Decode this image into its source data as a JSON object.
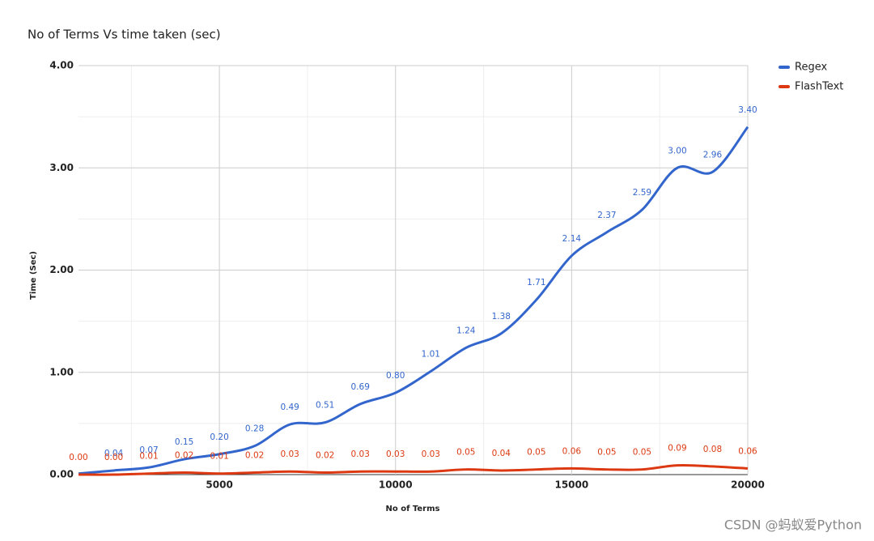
{
  "chart_data": {
    "type": "line",
    "title": "No of Terms Vs time taken (sec)",
    "x_label": "No of Terms",
    "y_label": "Time (Sec)",
    "x": [
      1000,
      2000,
      3000,
      4000,
      5000,
      6000,
      7000,
      8000,
      9000,
      10000,
      11000,
      12000,
      13000,
      14000,
      15000,
      16000,
      17000,
      18000,
      19000,
      20000
    ],
    "series": [
      {
        "name": "Regex",
        "color": "#3366cc",
        "values": [
          0.01,
          0.04,
          0.07,
          0.15,
          0.2,
          0.28,
          0.49,
          0.51,
          0.69,
          0.8,
          1.01,
          1.24,
          1.38,
          1.71,
          2.14,
          2.37,
          2.59,
          3.0,
          2.96,
          3.4
        ],
        "value_labels": [
          null,
          "0.04",
          "0.07",
          "0.15",
          "0.20",
          "0.28",
          "0.49",
          "0.51",
          "0.69",
          "0.80",
          "1.01",
          "1.24",
          "1.38",
          "1.71",
          "2.14",
          "2.37",
          "2.59",
          "3.00",
          "2.96",
          "3.40"
        ]
      },
      {
        "name": "FlashText",
        "color": "#dc3912",
        "values": [
          0.0,
          0.0,
          0.01,
          0.02,
          0.01,
          0.02,
          0.03,
          0.02,
          0.03,
          0.03,
          0.03,
          0.05,
          0.04,
          0.05,
          0.06,
          0.05,
          0.05,
          0.09,
          0.08,
          0.06
        ],
        "value_labels": [
          "0.00",
          "0.00",
          "0.01",
          "0.02",
          "0.01",
          "0.02",
          "0.03",
          "0.02",
          "0.03",
          "0.03",
          "0.03",
          "0.05",
          "0.04",
          "0.05",
          "0.06",
          "0.05",
          "0.05",
          "0.09",
          "0.08",
          "0.06"
        ]
      }
    ],
    "xlim": [
      1000,
      20000
    ],
    "xticks": [
      5000,
      10000,
      15000,
      20000
    ],
    "x_minor_ticks": [
      2500,
      7500,
      12500,
      17500
    ],
    "ylim": [
      0,
      4
    ],
    "yticks": [
      {
        "value": 0,
        "label": "0.00"
      },
      {
        "value": 1,
        "label": "1.00"
      },
      {
        "value": 2,
        "label": "2.00"
      },
      {
        "value": 3,
        "label": "3.00"
      },
      {
        "value": 4,
        "label": "4.00"
      }
    ],
    "y_minor_ticks": [
      0.5,
      1.5,
      2.5,
      3.5
    ],
    "grid": true,
    "legend": "right",
    "watermark": "CSDN @蚂蚁爱Python"
  }
}
